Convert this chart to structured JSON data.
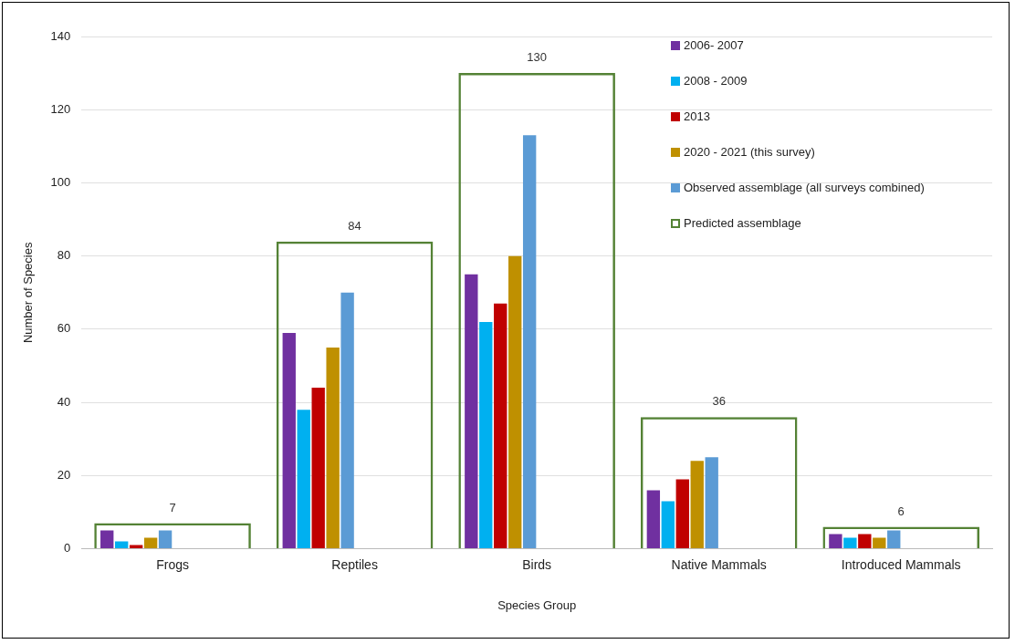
{
  "chart_data": {
    "type": "bar",
    "xlabel": "Species Group",
    "ylabel": "Number of Species",
    "categories": [
      "Frogs",
      "Reptiles",
      "Birds",
      "Native Mammals",
      "Introduced Mammals"
    ],
    "ylim": [
      0,
      140
    ],
    "yticks": [
      0,
      20,
      40,
      60,
      80,
      100,
      120,
      140
    ],
    "grid": "y",
    "legend": "top right",
    "series": [
      {
        "name": "2006- 2007",
        "color": "#7030a0",
        "values": [
          5,
          59,
          75,
          16,
          4
        ]
      },
      {
        "name": "2008 - 2009",
        "color": "#00b0f0",
        "values": [
          2,
          38,
          62,
          13,
          3
        ]
      },
      {
        "name": "2013",
        "color": "#c00000",
        "values": [
          1,
          44,
          67,
          19,
          4
        ]
      },
      {
        "name": "2020 - 2021 (this survey)",
        "color": "#bf9000",
        "values": [
          3,
          55,
          80,
          24,
          3
        ]
      },
      {
        "name": "Observed assemblage (all surveys combined)",
        "color": "#5b9bd5",
        "values": [
          5,
          70,
          113,
          25,
          5
        ]
      },
      {
        "name": "Predicted assemblage",
        "color": "#548235",
        "values": [
          7,
          84,
          130,
          36,
          6
        ],
        "value_labels": [
          "7",
          "84",
          "130",
          "36",
          "6"
        ]
      }
    ]
  }
}
